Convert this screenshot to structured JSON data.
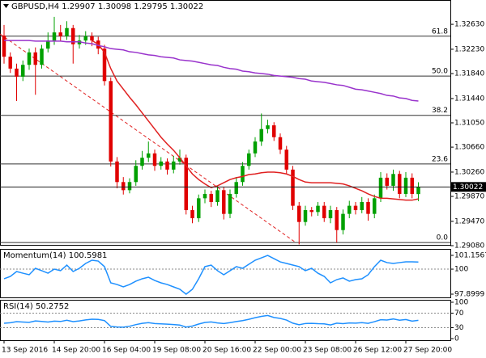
{
  "chart_data": [
    {
      "type": "candlestick",
      "title": "GBPUSD,H4",
      "categories": [
        "13 Sep 2016",
        null,
        null,
        null,
        null,
        null,
        null,
        null,
        "14 Sep 20:00",
        null,
        null,
        null,
        null,
        null,
        null,
        null,
        "16 Sep 04:00",
        null,
        null,
        null,
        null,
        null,
        null,
        null,
        "19 Sep 08:00",
        null,
        null,
        null,
        null,
        null,
        null,
        null,
        "20 Sep 16:00",
        null,
        null,
        null,
        null,
        null,
        null,
        null,
        "22 Sep 00:00",
        null,
        null,
        null,
        null,
        null,
        null,
        null,
        "23 Sep 08:00",
        null,
        null,
        null,
        null,
        null,
        null,
        null,
        "26 Sep 12:00",
        null,
        null,
        null,
        null,
        null,
        null,
        null,
        "27 Sep 20:00",
        null,
        null
      ],
      "open": [
        1.3245,
        1.3211,
        1.3192,
        1.3179,
        1.3198,
        1.3218,
        1.3198,
        1.3224,
        1.3237,
        1.325,
        1.3244,
        1.3257,
        1.3231,
        1.3237,
        1.3244,
        1.3237,
        1.3224,
        1.3172,
        1.3043,
        1.301,
        1.2997,
        1.301,
        1.3036,
        1.3049,
        1.3056,
        1.3036,
        1.3043,
        1.303,
        1.3043,
        1.3049,
        1.2965,
        1.2952,
        1.2984,
        1.2991,
        1.2978,
        1.2997,
        1.2959,
        1.2991,
        1.301,
        1.3036,
        1.3056,
        1.3075,
        1.3095,
        1.3101,
        1.3082,
        1.3062,
        1.303,
        1.2972,
        1.2946,
        1.2965,
        1.2962,
        1.2972,
        1.2952,
        1.2965,
        1.2933,
        1.2959,
        1.2972,
        1.2965,
        1.2978,
        1.2959,
        1.2984,
        1.3017,
        1.3004,
        1.3023,
        1.2991,
        1.3017,
        1.29907
      ],
      "high": [
        1.3262,
        1.3218,
        1.32,
        1.3205,
        1.3224,
        1.3226,
        1.323,
        1.325,
        1.3275,
        1.3262,
        1.3268,
        1.3262,
        1.3246,
        1.3252,
        1.325,
        1.3243,
        1.323,
        1.3178,
        1.305,
        1.3018,
        1.3016,
        1.3045,
        1.306,
        1.3075,
        1.3062,
        1.305,
        1.3048,
        1.3052,
        1.3062,
        1.3054,
        1.2972,
        1.299,
        1.2998,
        1.2996,
        1.3004,
        1.3002,
        1.2998,
        1.3018,
        1.3042,
        1.3062,
        1.3082,
        1.312,
        1.311,
        1.3106,
        1.3088,
        1.3068,
        1.3036,
        1.2978,
        1.2972,
        1.297,
        1.2978,
        1.2978,
        1.2972,
        1.297,
        1.2966,
        1.298,
        1.2978,
        1.2986,
        1.2984,
        1.299,
        1.3026,
        1.3024,
        1.303,
        1.3028,
        1.3026,
        1.3024,
        1.30098
      ],
      "low": [
        1.32,
        1.3185,
        1.314,
        1.3172,
        1.319,
        1.315,
        1.3192,
        1.3218,
        1.323,
        1.3236,
        1.3238,
        1.32,
        1.3224,
        1.323,
        1.3228,
        1.3215,
        1.3165,
        1.3035,
        1.3,
        1.299,
        1.2992,
        1.3004,
        1.303,
        1.3042,
        1.3028,
        1.303,
        1.3022,
        1.3024,
        1.3038,
        1.2958,
        1.2944,
        1.2946,
        1.2976,
        1.297,
        1.2972,
        1.295,
        1.2952,
        1.2985,
        1.3004,
        1.303,
        1.305,
        1.3068,
        1.3088,
        1.3076,
        1.3055,
        1.3024,
        1.2965,
        1.291,
        1.294,
        1.2955,
        1.2956,
        1.2946,
        1.2944,
        1.2913,
        1.2926,
        1.2952,
        1.2958,
        1.296,
        1.2948,
        1.2952,
        1.2978,
        1.2998,
        1.2996,
        1.2984,
        1.2986,
        1.2984,
        1.29795
      ],
      "close": [
        1.3211,
        1.3192,
        1.3179,
        1.3198,
        1.3218,
        1.3198,
        1.3224,
        1.3237,
        1.325,
        1.3244,
        1.3257,
        1.3231,
        1.3237,
        1.3244,
        1.3237,
        1.3224,
        1.3172,
        1.3043,
        1.301,
        1.2997,
        1.301,
        1.3036,
        1.3049,
        1.3056,
        1.3036,
        1.3043,
        1.303,
        1.3043,
        1.3049,
        1.2965,
        1.2952,
        1.2984,
        1.2991,
        1.2978,
        1.2997,
        1.2959,
        1.2991,
        1.301,
        1.3036,
        1.3056,
        1.3075,
        1.3095,
        1.3101,
        1.3082,
        1.3062,
        1.303,
        1.2972,
        1.2946,
        1.2965,
        1.2962,
        1.2972,
        1.2952,
        1.2965,
        1.2933,
        1.2959,
        1.2972,
        1.2965,
        1.2978,
        1.2959,
        1.2984,
        1.3017,
        1.3004,
        1.3023,
        1.2991,
        1.3017,
        1.2991,
        1.30022
      ],
      "up_color": "#00a000",
      "down_color": "#e00000",
      "series": [
        {
          "color": "#e02020",
          "values": [
            null,
            null,
            null,
            null,
            null,
            null,
            null,
            null,
            null,
            null,
            null,
            null,
            null,
            null,
            1.3237,
            1.3231,
            1.3218,
            1.3192,
            1.3172,
            1.3159,
            1.3146,
            1.3134,
            1.3121,
            1.3108,
            1.3095,
            1.3082,
            1.3071,
            1.3061,
            1.3049,
            1.3036,
            1.3023,
            1.3014,
            1.3007,
            1.3001,
            1.3004,
            1.3009,
            1.3014,
            1.3017,
            1.3019,
            1.3022,
            1.3023,
            1.3025,
            1.3026,
            1.3026,
            1.3025,
            1.3023,
            1.3019,
            1.3014,
            1.301,
            1.3009,
            1.3009,
            1.3009,
            1.3009,
            1.3008,
            1.3007,
            1.3004,
            1.3,
            1.2996,
            1.2991,
            1.2987,
            1.2984,
            1.2984,
            1.2983,
            1.2982,
            1.2981,
            1.2981,
            1.2983
          ]
        },
        {
          "color": "#9933cc",
          "values": [
            1.3237,
            1.3237,
            1.3237,
            1.3237,
            1.3237,
            1.3236,
            1.3236,
            1.3236,
            1.3236,
            1.3236,
            1.3235,
            1.3235,
            1.3235,
            1.3233,
            1.3232,
            1.3229,
            1.3227,
            1.3224,
            1.3223,
            1.3222,
            1.3219,
            1.3218,
            1.3216,
            1.3214,
            1.3213,
            1.3211,
            1.321,
            1.3209,
            1.3206,
            1.3205,
            1.3204,
            1.3202,
            1.32,
            1.3198,
            1.3197,
            1.3194,
            1.3192,
            1.3191,
            1.3188,
            1.3187,
            1.3185,
            1.3184,
            1.3183,
            1.3181,
            1.318,
            1.3179,
            1.3178,
            1.3176,
            1.3175,
            1.3172,
            1.3171,
            1.317,
            1.3168,
            1.3166,
            1.3165,
            1.3162,
            1.3159,
            1.3158,
            1.3156,
            1.3154,
            1.3152,
            1.3149,
            1.3148,
            1.3145,
            1.3144,
            1.3141,
            1.314
          ]
        }
      ],
      "fib_levels": [
        {
          "label": "61.8",
          "value": 1.3244
        },
        {
          "label": "50.0",
          "value": 1.318
        },
        {
          "label": "38.2",
          "value": 1.3117
        },
        {
          "label": "23.6",
          "value": 1.3039
        },
        {
          "label": "0.0",
          "value": 1.2913
        }
      ],
      "ylim": [
        1.2908,
        1.3302
      ],
      "yticks": [
        {
          "value": 1.3263,
          "label": "1.32630"
        },
        {
          "value": 1.3223,
          "label": "1.32230"
        },
        {
          "value": 1.3184,
          "label": "1.31840"
        },
        {
          "value": 1.3144,
          "label": "1.31440"
        },
        {
          "value": 1.3105,
          "label": "1.31050"
        },
        {
          "value": 1.3066,
          "label": "1.30660"
        },
        {
          "value": 1.3026,
          "label": "1.30260"
        },
        {
          "value": 1.2987,
          "label": "1.29870"
        },
        {
          "value": 1.2947,
          "label": "1.29470"
        },
        {
          "value": 1.2908,
          "label": "1.29080"
        }
      ]
    },
    {
      "type": "line",
      "title": "Momentum(14)",
      "color": "#1e90ff",
      "values": [
        99.19,
        99.39,
        99.8,
        99.66,
        99.53,
        100.07,
        99.87,
        99.66,
        100.0,
        99.87,
        100.34,
        99.8,
        100.07,
        100.48,
        100.75,
        100.68,
        100.21,
        98.85,
        98.71,
        98.51,
        98.71,
        98.99,
        99.19,
        99.32,
        99.05,
        98.85,
        98.71,
        98.51,
        98.31,
        97.9,
        98.31,
        99.19,
        100.21,
        100.34,
        99.87,
        99.53,
        99.87,
        100.21,
        100.07,
        100.41,
        100.75,
        100.95,
        101.15,
        100.88,
        100.61,
        100.48,
        100.34,
        100.21,
        99.87,
        100.07,
        99.66,
        99.39,
        98.85,
        99.12,
        99.26,
        98.99,
        99.12,
        99.19,
        99.53,
        100.21,
        100.75,
        100.55,
        100.48,
        100.55,
        100.61,
        100.61,
        100.5981
      ],
      "ylim": [
        97.8999,
        101.1567
      ],
      "yticks": [
        101.1567,
        100,
        97.8999
      ]
    },
    {
      "type": "line",
      "title": "RSI(14)",
      "color": "#1e90ff",
      "values": [
        42.3,
        43.7,
        46.6,
        45.6,
        44.7,
        48.5,
        47.1,
        45.6,
        48.0,
        47.1,
        50.4,
        46.6,
        48.5,
        51.4,
        53.3,
        52.8,
        49.5,
        33.5,
        32.0,
        31.5,
        34.0,
        38.5,
        42.0,
        44.0,
        41.5,
        40.5,
        39.8,
        38.6,
        37.2,
        31.8,
        34.5,
        40.0,
        44.5,
        45.8,
        43.0,
        41.5,
        44.0,
        47.0,
        49.5,
        53.0,
        57.5,
        61.0,
        63.5,
        58.0,
        55.5,
        51.0,
        42.5,
        38.0,
        41.5,
        42.0,
        41.0,
        40.5,
        37.5,
        42.5,
        41.0,
        43.0,
        42.5,
        44.0,
        42.0,
        46.5,
        52.0,
        51.0,
        54.0,
        50.5,
        52.5,
        48.0,
        50.2752
      ],
      "ylim": [
        0,
        100
      ],
      "yticks": [
        100,
        70,
        30,
        0
      ]
    }
  ]
}
